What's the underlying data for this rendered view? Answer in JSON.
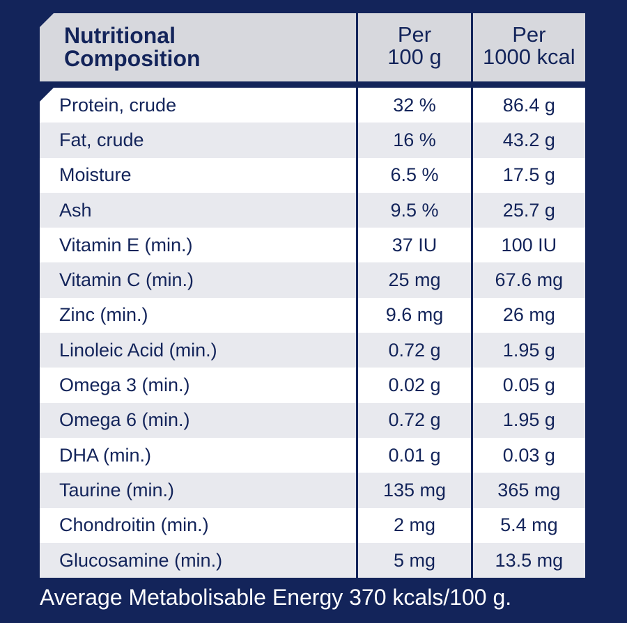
{
  "header": {
    "name_line1": "Nutritional",
    "name_line2": "Composition",
    "col1_line1": "Per",
    "col1_line2": "100 g",
    "col2_line1": "Per",
    "col2_line2": "1000 kcal"
  },
  "rows": [
    {
      "name": "Protein, crude",
      "per100g": "32 %",
      "per1000kcal": "86.4 g"
    },
    {
      "name": "Fat, crude",
      "per100g": "16 %",
      "per1000kcal": "43.2 g"
    },
    {
      "name": "Moisture",
      "per100g": "6.5 %",
      "per1000kcal": "17.5 g"
    },
    {
      "name": "Ash",
      "per100g": "9.5 %",
      "per1000kcal": "25.7 g"
    },
    {
      "name": "Vitamin E (min.)",
      "per100g": "37 IU",
      "per1000kcal": "100 IU"
    },
    {
      "name": "Vitamin C (min.)",
      "per100g": "25 mg",
      "per1000kcal": "67.6 mg"
    },
    {
      "name": "Zinc (min.)",
      "per100g": "9.6 mg",
      "per1000kcal": "26 mg"
    },
    {
      "name": "Linoleic Acid (min.)",
      "per100g": "0.72 g",
      "per1000kcal": "1.95 g"
    },
    {
      "name": "Omega 3 (min.)",
      "per100g": "0.02 g",
      "per1000kcal": "0.05 g"
    },
    {
      "name": "Omega 6 (min.)",
      "per100g": "0.72 g",
      "per1000kcal": "1.95 g"
    },
    {
      "name": "DHA (min.)",
      "per100g": "0.01 g",
      "per1000kcal": "0.03 g"
    },
    {
      "name": "Taurine (min.)",
      "per100g": "135 mg",
      "per1000kcal": "365 mg"
    },
    {
      "name": "Chondroitin (min.)",
      "per100g": "2 mg",
      "per1000kcal": "5.4 mg"
    },
    {
      "name": "Glucosamine (min.)",
      "per100g": "5 mg",
      "per1000kcal": "13.5 mg"
    }
  ],
  "footer": "Average Metabolisable Energy 370 kcals/100 g.",
  "colors": {
    "background": "#13245a",
    "header_bg": "#d7d8dd",
    "row_alt_bg": "#e8e9ee",
    "row_bg": "#ffffff"
  }
}
